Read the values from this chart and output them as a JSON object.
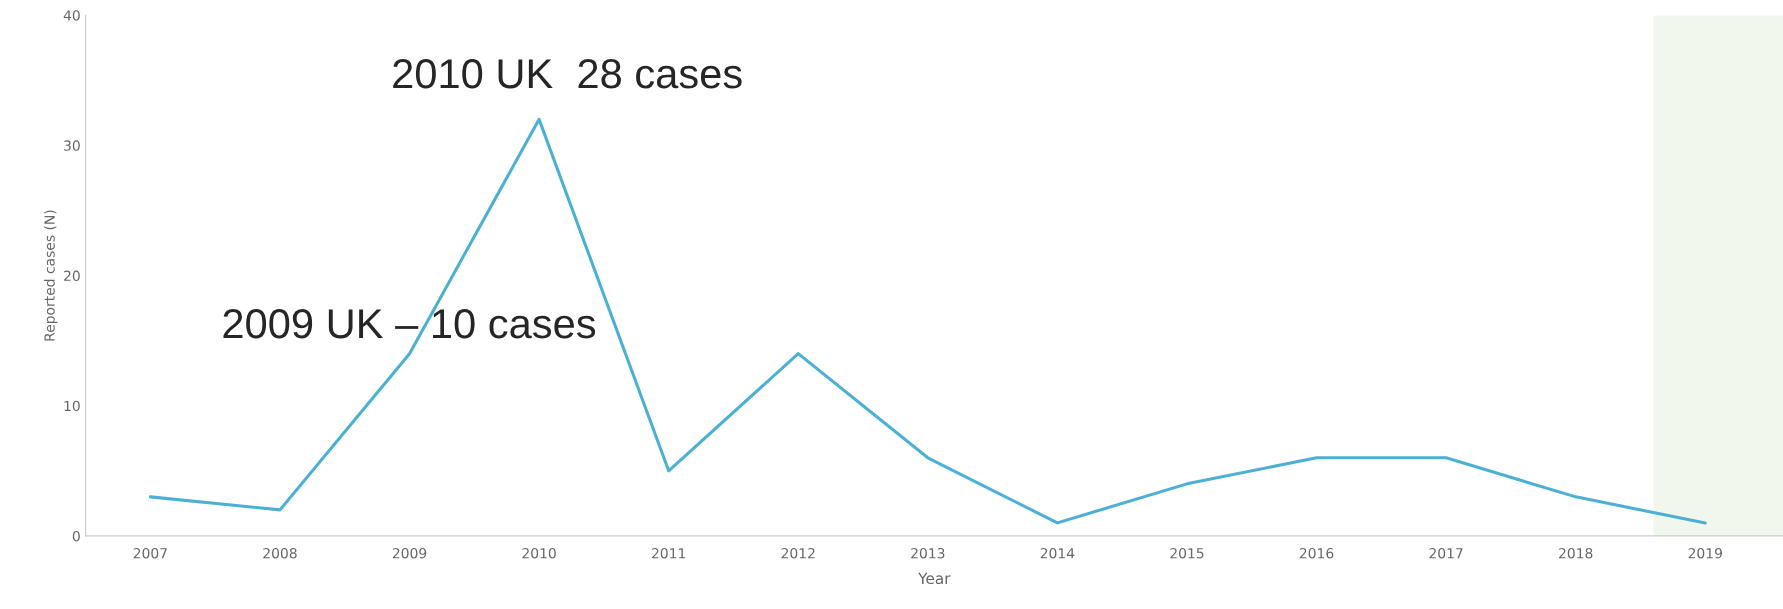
{
  "chart_data": {
    "type": "line",
    "xlabel": "Year",
    "ylabel": "Reported cases (N)",
    "x": [
      2007,
      2008,
      2009,
      2010,
      2011,
      2012,
      2013,
      2014,
      2015,
      2016,
      2017,
      2018,
      2019
    ],
    "series": [
      {
        "color": "#4bb0d4",
        "values": [
          3,
          2,
          14,
          32,
          5,
          14,
          6,
          1,
          4,
          6,
          6,
          3,
          1
        ]
      }
    ],
    "xlim": [
      2006.5,
      2019.6
    ],
    "xticks": [
      2007,
      2008,
      2009,
      2010,
      2011,
      2012,
      2013,
      2014,
      2015,
      2016,
      2017,
      2018,
      2019
    ],
    "ylim": [
      0,
      40
    ],
    "yticks": [
      0,
      10,
      20,
      30,
      40
    ],
    "bands": [
      {
        "axis": "x",
        "from": 2018.6,
        "to": 2019.6,
        "color": "#f2f7ee"
      }
    ],
    "annotations": [
      "2010 UK  28 cases",
      "2009 UK – 10 cases"
    ],
    "grid": false,
    "legend": false,
    "marker": "none",
    "line_style": "solid"
  }
}
